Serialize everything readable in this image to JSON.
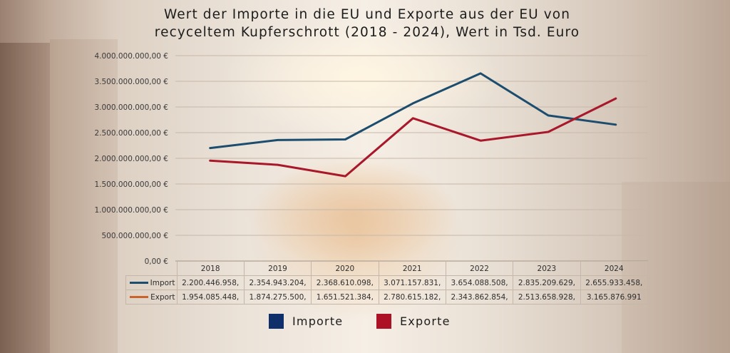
{
  "chart_data": {
    "type": "line",
    "title_line1": "Wert der Importe in die EU und Exporte aus der EU von",
    "title_line2": "recyceltem Kupferschrott (2018 - 2024), Wert in Tsd. Euro",
    "categories": [
      "2018",
      "2019",
      "2020",
      "2021",
      "2022",
      "2023",
      "2024"
    ],
    "ylim": [
      0,
      4000000000
    ],
    "yticks": [
      0,
      500000000,
      1000000000,
      1500000000,
      2000000000,
      2500000000,
      3000000000,
      3500000000,
      4000000000
    ],
    "ytick_labels": [
      "0,00 €",
      "500.000.000,00 €",
      "1.000.000.000,00 €",
      "1.500.000.000,00 €",
      "2.000.000.000,00 €",
      "2.500.000.000,00 €",
      "3.000.000.000,00 €",
      "3.500.000.000,00 €",
      "4.000.000.000,00 €"
    ],
    "grid": true,
    "series": [
      {
        "name": "Import",
        "legend_name": "Importe",
        "line_color": "#1c4d6e",
        "legend_color": "#0f2f6b",
        "values": [
          2200446958,
          2354943204,
          2368610098,
          3071157831,
          3654088508,
          2835209629,
          2655933458
        ],
        "table_labels": [
          "2.200.446.958,",
          "2.354.943.204,",
          "2.368.610.098,",
          "3.071.157.831,",
          "3.654.088.508,",
          "2.835.209.629,",
          "2.655.933.458,"
        ]
      },
      {
        "name": "Export",
        "legend_name": "Exporte",
        "line_color": "#a8182a",
        "legend_color": "#ad1126",
        "table_key_color": "#c8632e",
        "values": [
          1954085448,
          1874275500,
          1651521384,
          2780615182,
          2343862854,
          2513658928,
          3165876991
        ],
        "table_labels": [
          "1.954.085.448,",
          "1.874.275.500,",
          "1.651.521.384,",
          "2.780.615.182,",
          "2.343.862.854,",
          "2.513.658.928,",
          "3.165.876.991"
        ]
      }
    ]
  }
}
